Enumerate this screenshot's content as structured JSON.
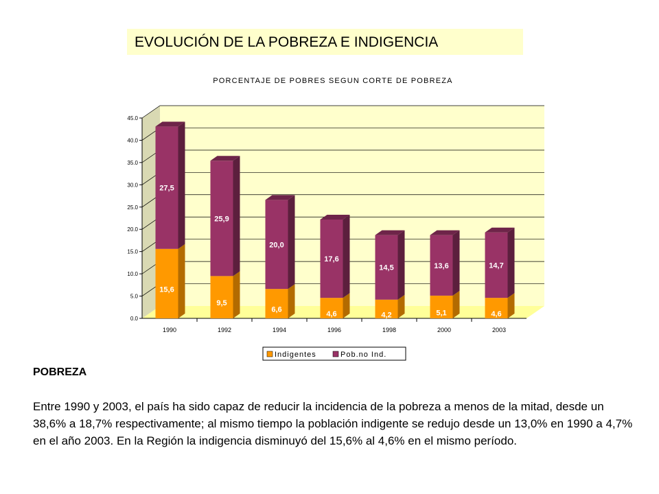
{
  "page_title": "EVOLUCIÓN DE LA POBREZA E INDIGENCIA",
  "chart_data": {
    "type": "bar",
    "stacked": true,
    "title": "PORCENTAJE DE POBRES SEGUN CORTE DE POBREZA",
    "categories": [
      "1990",
      "1992",
      "1994",
      "1996",
      "1998",
      "2000",
      "2003"
    ],
    "series": [
      {
        "name": "Indigentes",
        "color": "#ff9900",
        "values": [
          15.6,
          9.5,
          6.6,
          4.6,
          4.2,
          5.1,
          4.6
        ]
      },
      {
        "name": "Pob.no Ind.",
        "color": "#993366",
        "values": [
          27.5,
          25.9,
          20.0,
          17.6,
          14.5,
          13.6,
          14.7
        ]
      }
    ],
    "data_labels": {
      "Indigentes": [
        "15,6",
        "9,5",
        "6,6",
        "4,6",
        "4,2",
        "5,1",
        "4,6"
      ],
      "Pob.no Ind.": [
        "27,5",
        "25,9",
        "20,0",
        "17,6",
        "14,5",
        "13,6",
        "14,7"
      ]
    },
    "yticks": [
      "0.0",
      "5.0",
      "10.0",
      "15.0",
      "20.0",
      "25.0",
      "30.0",
      "35.0",
      "40.0",
      "45.0"
    ],
    "ylim": [
      0,
      45
    ],
    "grid": true,
    "legend_position": "bottom",
    "colors": {
      "wall": "#ffffcc",
      "floor": "#ffff99"
    }
  },
  "section_title": "POBREZA",
  "body_text": "Entre 1990 y 2003, el país ha sido capaz de reducir la incidencia de la pobreza a menos de la mitad, desde un 38,6% a 18,7% respectivamente; al mismo tiempo la población indigente se redujo desde un 13,0% en 1990 a 4,7% en el año 2003. En la Región la indigencia disminuyó del 15,6% al 4,6% en el mismo período."
}
